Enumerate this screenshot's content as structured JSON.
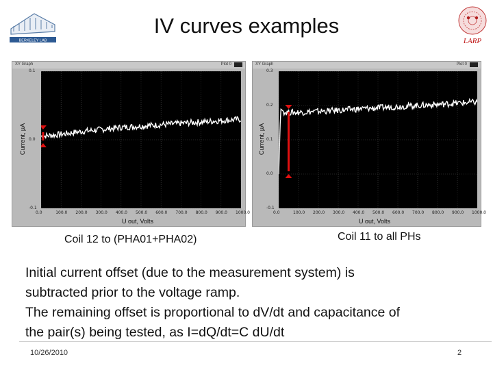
{
  "slide": {
    "title": "IV curves examples",
    "logo_left_text": "BERKELEY LAB",
    "logo_right_text": "LARP",
    "date": "10/26/2010",
    "page": "2"
  },
  "body_lines": [
    "Initial current offset (due to the measurement system) is",
    "subtracted prior to the voltage ramp.",
    "The remaining offset is proportional to dV/dt and capacitance of",
    "the pair(s) being tested, as I=dQ/dt=C dU/dt"
  ],
  "colors": {
    "plot_bg": "#000000",
    "trace": "#ffffff",
    "grid": "#4a4a4a",
    "arrow": "#e01010",
    "panel": "#b9b9b9"
  },
  "chart_data": [
    {
      "type": "line",
      "panel_label": "XY Graph",
      "legend": "Plot 0",
      "caption": "Coil 12 to (PHA01+PHA02)",
      "xlabel": "U out, Volts",
      "ylabel": "Current, µA",
      "x_ticks": [
        "0.0",
        "100.0",
        "200.0",
        "300.0",
        "400.0",
        "500.0",
        "600.0",
        "700.0",
        "800.0",
        "900.0",
        "1000.0"
      ],
      "y_ticks": [
        "0.1",
        "0.0",
        "-0.1"
      ],
      "xlim": [
        0,
        1000
      ],
      "ylim": [
        -0.1,
        0.1
      ],
      "grid": true,
      "series": [
        {
          "x": [
            0,
            100,
            200,
            300,
            400,
            500,
            600,
            700,
            800,
            900,
            1000
          ],
          "y": [
            0.005,
            0.008,
            0.012,
            0.015,
            0.018,
            0.02,
            0.022,
            0.024,
            0.026,
            0.028,
            0.03
          ]
        }
      ],
      "arrow": {
        "x": 10,
        "y_from": -0.005,
        "y_to": 0.015
      }
    },
    {
      "type": "line",
      "panel_label": "XY Graph",
      "legend": "Plot 0",
      "caption": "Coil 11 to all PHs",
      "xlabel": "U out, Volts",
      "ylabel": "Current, µA",
      "x_ticks": [
        "0.0",
        "100.0",
        "200.0",
        "300.0",
        "400.0",
        "500.0",
        "600.0",
        "700.0",
        "800.0",
        "900.0",
        "1000.0"
      ],
      "y_ticks": [
        "0.3",
        "0.2",
        "0.1",
        "0.0",
        "-0.1"
      ],
      "xlim": [
        0,
        1000
      ],
      "ylim": [
        -0.1,
        0.3
      ],
      "grid": true,
      "series": [
        {
          "x": [
            0,
            10,
            20,
            30,
            100,
            200,
            300,
            400,
            500,
            600,
            700,
            800,
            900,
            1000
          ],
          "y": [
            0.0,
            0.19,
            0.185,
            0.18,
            0.18,
            0.183,
            0.186,
            0.19,
            0.193,
            0.197,
            0.2,
            0.203,
            0.207,
            0.21
          ]
        }
      ],
      "arrow": {
        "x": 50,
        "y_from": 0.0,
        "y_to": 0.19
      }
    }
  ]
}
